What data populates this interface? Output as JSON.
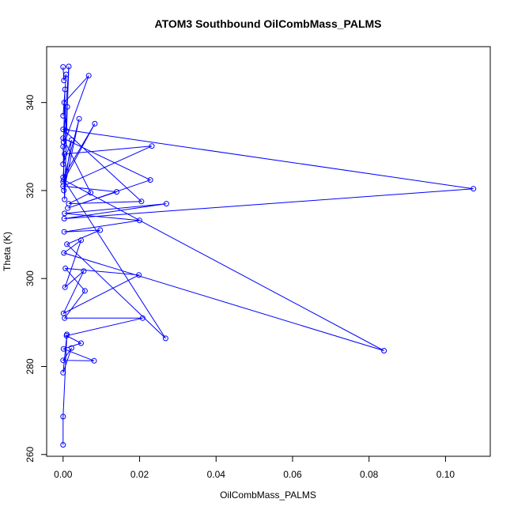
{
  "chart_data": {
    "type": "line",
    "title": "ATOM3 Southbound OilCombMass_PALMS",
    "xlabel": "OilCombMass_PALMS",
    "ylabel": "Theta (K)",
    "xlim": [
      -0.0043,
      0.1117
    ],
    "ylim": [
      259.6,
      352.7
    ],
    "xticks": [
      0.0,
      0.02,
      0.04,
      0.06,
      0.08,
      0.1
    ],
    "xtick_labels": [
      "0.00",
      "0.02",
      "0.04",
      "0.06",
      "0.08",
      "0.10"
    ],
    "yticks": [
      260,
      280,
      300,
      320,
      340
    ],
    "ytick_labels": [
      "260",
      "280",
      "300",
      "320",
      "340"
    ],
    "grid": false,
    "color": "#0000ff",
    "series": [
      {
        "x": [
          0.0,
          0.0002,
          0.0008,
          0.0,
          0.0005,
          0.0001,
          0.0015,
          0.0009,
          0.0003,
          0.0067,
          0.0,
          0.0004,
          0.0011,
          0.0,
          0.0022,
          0.0002,
          0.0042,
          0.0,
          0.0083,
          0.0,
          0.0004,
          0.0232,
          0.0,
          0.014,
          0.0012,
          0.0228,
          0.0,
          0.0072,
          0.0015,
          0.0205,
          0.0,
          0.1073,
          0.0003,
          0.027,
          0.0004,
          0.02,
          0.0003,
          0.0097,
          0.001,
          0.0268,
          0.0002,
          0.0839,
          0.0002,
          0.0047,
          0.0005,
          0.0054,
          0.0001,
          0.0198,
          0.0006,
          0.0057,
          0.0004,
          0.0208,
          0.0009,
          0.0047,
          0.0001,
          0.0081,
          0.0,
          0.0022,
          0.0,
          0.001,
          0.0,
          0.0
        ],
        "y": [
          348.1,
          345.0,
          346.4,
          337.0,
          343.0,
          331.0,
          348.2,
          333.5,
          340.0,
          346.1,
          330.0,
          318.0,
          339.0,
          326.0,
          331.5,
          320.0,
          336.3,
          322.0,
          335.2,
          323.0,
          328.3,
          330.1,
          321.0,
          319.7,
          316.0,
          322.4,
          331.9,
          319.5,
          317.0,
          317.5,
          333.9,
          320.4,
          313.6,
          317.0,
          314.8,
          313.2,
          310.6,
          311.0,
          307.8,
          286.4,
          322.4,
          283.6,
          305.8,
          308.7,
          298.0,
          301.7,
          292.1,
          300.8,
          302.3,
          297.2,
          291.0,
          291.0,
          287.0,
          285.3,
          284.0,
          281.3,
          281.4,
          284.2,
          278.6,
          287.3,
          268.6,
          262.2
        ]
      }
    ]
  }
}
